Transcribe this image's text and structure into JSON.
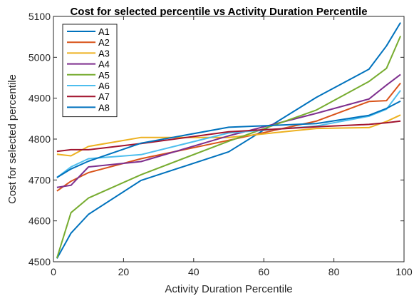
{
  "chart_data": {
    "type": "line",
    "title": "Cost for selected percentile vs Activity Duration Percentile",
    "xlabel": "Activity Duration Percentile",
    "ylabel": "Cost for selected percentile",
    "xlim": [
      0,
      100
    ],
    "ylim": [
      4500,
      5100
    ],
    "xticks": [
      0,
      20,
      40,
      60,
      80,
      100
    ],
    "yticks": [
      4500,
      4600,
      4700,
      4800,
      4900,
      5000,
      5100
    ],
    "x": [
      1,
      5,
      10,
      25,
      50,
      75,
      90,
      95,
      99
    ],
    "grid": false,
    "legend_position": "top-left",
    "series": [
      {
        "name": "A1",
        "color": "#0072BD",
        "values": [
          4508,
          4570,
          4616,
          4699,
          4769,
          4902,
          4971,
          5028,
          5085
        ]
      },
      {
        "name": "A2",
        "color": "#D95319",
        "values": [
          4673,
          4697,
          4718,
          4752,
          4797,
          4844,
          4892,
          4894,
          4937
        ]
      },
      {
        "name": "A3",
        "color": "#EDB120",
        "values": [
          4763,
          4759,
          4782,
          4804,
          4804,
          4826,
          4828,
          4843,
          4859
        ]
      },
      {
        "name": "A4",
        "color": "#7E2F8E",
        "values": [
          4682,
          4687,
          4732,
          4745,
          4808,
          4863,
          4898,
          4932,
          4958
        ]
      },
      {
        "name": "A5",
        "color": "#77AC30",
        "values": [
          4509,
          4620,
          4656,
          4713,
          4795,
          4871,
          4941,
          4973,
          5052
        ]
      },
      {
        "name": "A6",
        "color": "#4DBEEE",
        "values": [
          4706,
          4732,
          4752,
          4762,
          4815,
          4832,
          4856,
          4873,
          4919
        ]
      },
      {
        "name": "A7",
        "color": "#A2142F",
        "values": [
          4770,
          4774,
          4774,
          4789,
          4818,
          4830,
          4836,
          4840,
          4844
        ]
      },
      {
        "name": "A8",
        "color": "#0072BD",
        "values": [
          4706,
          4727,
          4746,
          4790,
          4829,
          4838,
          4858,
          4875,
          4893
        ]
      }
    ]
  }
}
